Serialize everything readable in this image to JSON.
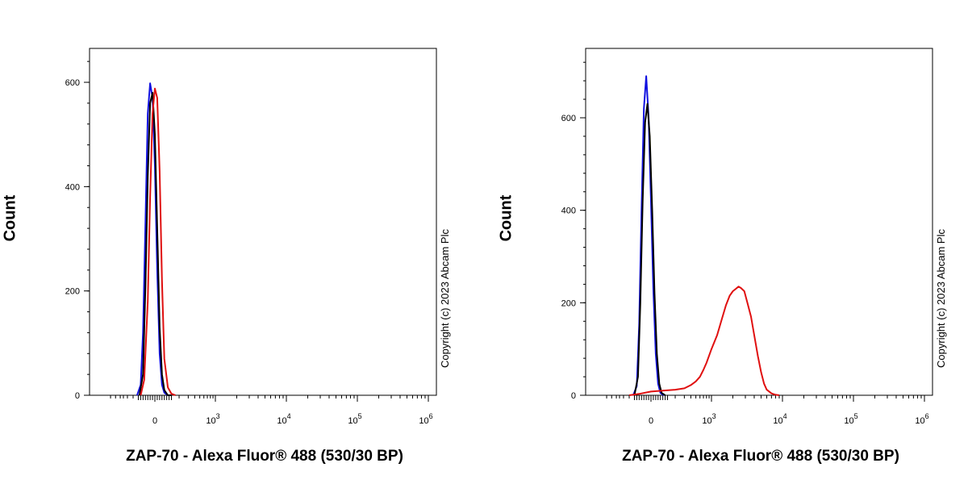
{
  "chart_data": [
    {
      "type": "line",
      "x_scale": "logicle",
      "xlabel": "ZAP-70 - Alexa Fluor® 488 (530/30 BP)",
      "ylabel": "Count",
      "x_ticks": [
        {
          "value": 0,
          "label": "0",
          "exp": ""
        },
        {
          "value": 1000,
          "label": "10",
          "exp": "3"
        },
        {
          "value": 10000,
          "label": "10",
          "exp": "4"
        },
        {
          "value": 100000,
          "label": "10",
          "exp": "5"
        },
        {
          "value": 1000000,
          "label": "10",
          "exp": "6"
        }
      ],
      "y_ticks": [
        0,
        200,
        400,
        600
      ],
      "ylim": [
        0,
        665
      ],
      "annotation": "Copyright (c) 2023 Abcam Plc",
      "series": [
        {
          "color": "#1010e0",
          "x": [
            -150,
            -120,
            -100,
            -80,
            -60,
            -40,
            -20,
            0,
            20,
            40,
            60,
            80,
            110,
            140
          ],
          "y": [
            0,
            20,
            120,
            330,
            540,
            598,
            570,
            440,
            240,
            80,
            20,
            5,
            0,
            0
          ]
        },
        {
          "color": "#000000",
          "x": [
            -130,
            -100,
            -80,
            -60,
            -40,
            -20,
            0,
            20,
            40,
            60,
            80,
            110,
            140
          ],
          "y": [
            0,
            40,
            210,
            420,
            560,
            580,
            500,
            320,
            130,
            40,
            10,
            0,
            0
          ]
        },
        {
          "color": "#e01010",
          "x": [
            -120,
            -90,
            -60,
            -40,
            -20,
            0,
            20,
            40,
            60,
            80,
            110,
            140,
            170
          ],
          "y": [
            0,
            30,
            180,
            380,
            540,
            588,
            570,
            430,
            220,
            70,
            15,
            3,
            0
          ]
        }
      ]
    },
    {
      "type": "line",
      "x_scale": "logicle",
      "xlabel": "ZAP-70 - Alexa Fluor® 488 (530/30 BP)",
      "ylabel": "Count",
      "x_ticks": [
        {
          "value": 0,
          "label": "0",
          "exp": ""
        },
        {
          "value": 1000,
          "label": "10",
          "exp": "3"
        },
        {
          "value": 10000,
          "label": "10",
          "exp": "4"
        },
        {
          "value": 100000,
          "label": "10",
          "exp": "5"
        },
        {
          "value": 1000000,
          "label": "10",
          "exp": "6"
        }
      ],
      "y_ticks": [
        0,
        200,
        400,
        600
      ],
      "ylim": [
        0,
        750
      ],
      "annotation": "Copyright (c) 2023 Abcam Plc",
      "series": [
        {
          "color": "#1010e0",
          "x": [
            -150,
            -120,
            -100,
            -80,
            -60,
            -40,
            -20,
            0,
            20,
            40,
            60,
            80,
            110
          ],
          "y": [
            0,
            20,
            150,
            400,
            620,
            690,
            600,
            420,
            230,
            90,
            25,
            5,
            0
          ]
        },
        {
          "color": "#000000",
          "x": [
            -140,
            -110,
            -90,
            -70,
            -50,
            -30,
            -10,
            10,
            30,
            50,
            70,
            90,
            120
          ],
          "y": [
            0,
            40,
            200,
            420,
            590,
            630,
            560,
            400,
            220,
            90,
            25,
            5,
            0
          ]
        },
        {
          "color": "#e01010",
          "x": [
            -200,
            -100,
            0,
            100,
            200,
            300,
            400,
            500,
            600,
            700,
            800,
            1000,
            1200,
            1400,
            1600,
            1800,
            2000,
            2200,
            2400,
            2600,
            2900,
            3200,
            3600,
            4000,
            4500,
            5000,
            5500,
            6000,
            7000,
            8000,
            9000
          ],
          "y": [
            0,
            3,
            8,
            10,
            12,
            15,
            22,
            30,
            40,
            55,
            70,
            100,
            130,
            165,
            195,
            215,
            225,
            230,
            235,
            232,
            225,
            200,
            170,
            130,
            85,
            50,
            25,
            12,
            4,
            1,
            0
          ]
        }
      ]
    }
  ]
}
